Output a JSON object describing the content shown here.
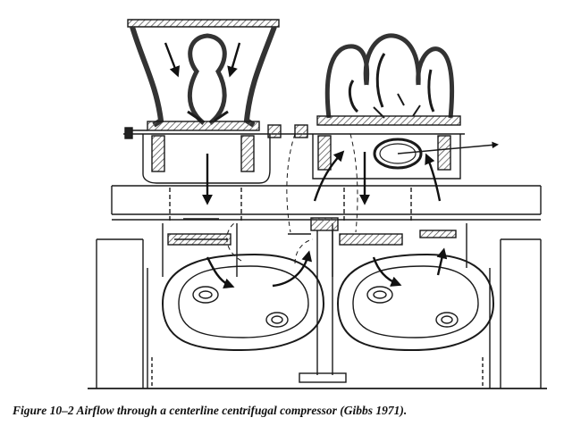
{
  "figure": {
    "caption": "Figure 10–2  Airflow through a centerline centrifugal compressor (Gibbs 1971).",
    "ink_color": "#1a1a1a",
    "hatch_color": "#555555"
  }
}
